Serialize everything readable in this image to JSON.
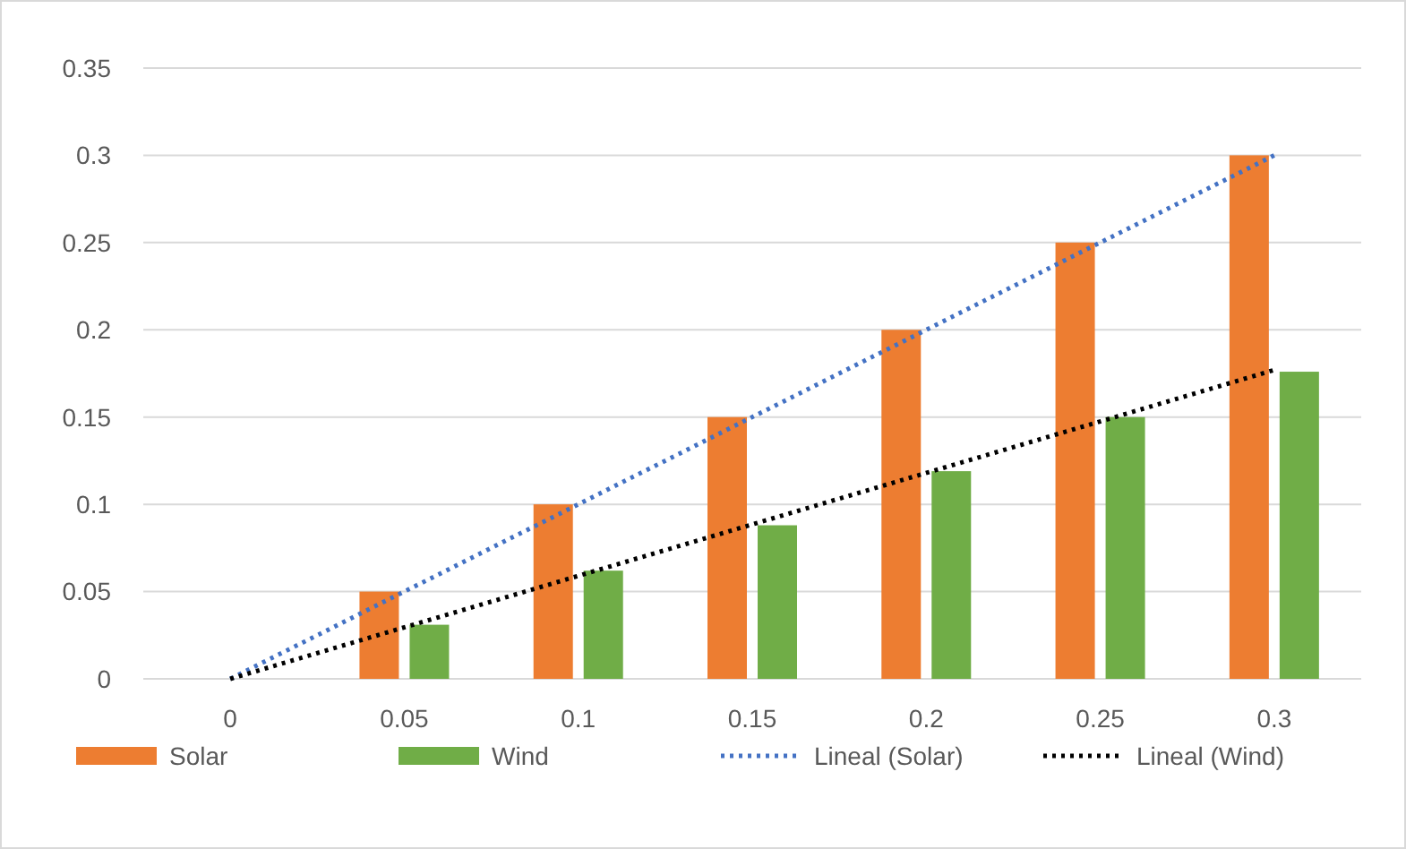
{
  "chart_data": {
    "type": "bar",
    "categories": [
      "0",
      "0.05",
      "0.1",
      "0.15",
      "0.2",
      "0.25",
      "0.3"
    ],
    "series": [
      {
        "name": "Solar",
        "color": "#ed7d31",
        "values": [
          0,
          0.05,
          0.1,
          0.15,
          0.2,
          0.25,
          0.3
        ]
      },
      {
        "name": "Wind",
        "color": "#70ad47",
        "values": [
          0,
          0.031,
          0.062,
          0.088,
          0.119,
          0.15,
          0.176
        ]
      },
      {
        "name": "Lineal (Solar)",
        "type": "line",
        "color": "#4472c4",
        "line_style": "dotted",
        "marker": "none",
        "x": [
          "0",
          "0.3"
        ],
        "values": [
          0,
          0.3
        ]
      },
      {
        "name": "Lineal (Wind)",
        "type": "line",
        "color": "#000000",
        "line_style": "dotted",
        "marker": "none",
        "x": [
          "0",
          "0.3"
        ],
        "values": [
          0,
          0.177
        ]
      }
    ],
    "ylim": [
      0,
      0.35
    ],
    "yticks": [
      0,
      0.05,
      0.1,
      0.15,
      0.2,
      0.25,
      0.3,
      0.35
    ],
    "grid": "y",
    "legend": "bottom"
  }
}
